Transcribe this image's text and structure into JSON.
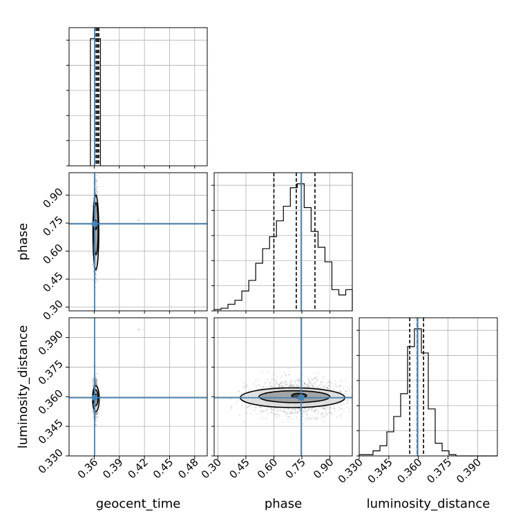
{
  "chart_data": {
    "type": "corner",
    "parameters": [
      "geocent_time",
      "phase",
      "luminosity_distance"
    ],
    "axis_labels": [
      "geocent_time",
      "phase",
      "luminosity_distance"
    ],
    "ranges": [
      [
        0.33,
        0.495
      ],
      [
        0.28,
        1.02
      ],
      [
        0.33,
        0.4
      ]
    ],
    "ticks": [
      {
        "values": [
          0.36,
          0.39,
          0.42,
          0.45,
          0.48
        ],
        "labels": [
          "0.36",
          "0.39",
          "0.42",
          "0.45",
          "0.48"
        ]
      },
      {
        "values": [
          0.3,
          0.45,
          0.6,
          0.75,
          0.9
        ],
        "labels": [
          "0.30",
          "0.45",
          "0.60",
          "0.75",
          "0.90"
        ]
      },
      {
        "values": [
          0.33,
          0.345,
          0.36,
          0.375,
          0.39
        ],
        "labels": [
          "0.330",
          "0.345",
          "0.360",
          "0.375",
          "0.390"
        ]
      }
    ],
    "truths": [
      0.3605,
      0.746,
      0.3595
    ],
    "colors": {
      "truth": "#4682b4",
      "hist": "#000000",
      "scatter": "#808080",
      "grid": "#b0b0b0"
    },
    "grid": true,
    "histograms": [
      {
        "param": "geocent_time",
        "bins": [
          0.3555,
          0.3675
        ],
        "counts": [
          1
        ],
        "quantiles": [
          0.3623,
          0.364,
          0.3655
        ]
      },
      {
        "param": "phase",
        "bins": [
          0.28,
          0.3171,
          0.3542,
          0.3913,
          0.4284,
          0.4655,
          0.5026,
          0.5397,
          0.5768,
          0.6139,
          0.651,
          0.6881,
          0.7252,
          0.7623,
          0.7994,
          0.8365,
          0.8736,
          0.9107,
          0.9478,
          0.9849,
          1.02
        ],
        "counts": [
          0.01,
          0.02,
          0.05,
          0.08,
          0.15,
          0.23,
          0.36,
          0.47,
          0.56,
          0.68,
          0.79,
          0.93,
          0.96,
          0.78,
          0.6,
          0.48,
          0.37,
          0.16,
          0.12,
          0.16
        ],
        "quantiles": [
          0.6,
          0.72,
          0.82
        ]
      },
      {
        "param": "luminosity_distance",
        "bins": [
          0.33,
          0.3335,
          0.337,
          0.3405,
          0.344,
          0.3475,
          0.351,
          0.3545,
          0.358,
          0.3615,
          0.365,
          0.3685,
          0.372,
          0.3755,
          0.379,
          0.3825,
          0.386,
          0.3895,
          0.393,
          0.3965,
          0.4
        ],
        "counts": [
          0.01,
          0.01,
          0.04,
          0.08,
          0.19,
          0.31,
          0.49,
          0.86,
          1.0,
          0.81,
          0.37,
          0.1,
          0.04,
          0.01,
          0.0,
          0.0,
          0.0,
          0.0,
          0.0,
          0.0
        ],
        "quantiles": [
          0.3556,
          0.3594,
          0.3626
        ]
      }
    ],
    "joint": [
      {
        "x": "geocent_time",
        "y": "phase",
        "center": [
          0.3615,
          0.72
        ],
        "spread": [
          0.0012,
          0.11
        ],
        "outlier": [
          0.413,
          0.765
        ],
        "contours": [
          {
            "center": [
              0.3618,
              0.74
            ],
            "half_width": [
              0.0012,
              0.025
            ]
          },
          {
            "center": [
              0.3622,
              0.72
            ],
            "half_width": [
              0.0025,
              0.14
            ]
          },
          {
            "center": [
              0.362,
              0.7
            ],
            "half_width": [
              0.0035,
              0.2
            ]
          }
        ]
      },
      {
        "x": "geocent_time",
        "y": "luminosity_distance",
        "center": [
          0.3615,
          0.3595
        ],
        "spread": [
          0.0012,
          0.0045
        ],
        "outlier": [
          0.413,
          0.394
        ],
        "contours": [
          {
            "center": [
              0.3618,
              0.36
            ],
            "half_width": [
              0.0012,
              0.0012
            ]
          },
          {
            "center": [
              0.3618,
              0.3595
            ],
            "half_width": [
              0.0028,
              0.004
            ]
          },
          {
            "center": [
              0.362,
              0.359
            ],
            "half_width": [
              0.004,
              0.0065
            ]
          }
        ]
      },
      {
        "x": "phase",
        "y": "luminosity_distance",
        "center": [
          0.73,
          0.3595
        ],
        "spread": [
          0.13,
          0.0045
        ],
        "contours": [
          {
            "center": [
              0.735,
              0.3605
            ],
            "half_width": [
              0.04,
              0.0012
            ]
          },
          {
            "center": [
              0.71,
              0.36
            ],
            "half_width": [
              0.19,
              0.003
            ]
          },
          {
            "center": [
              0.7,
              0.3595
            ],
            "half_width": [
              0.28,
              0.005
            ]
          }
        ]
      }
    ]
  }
}
